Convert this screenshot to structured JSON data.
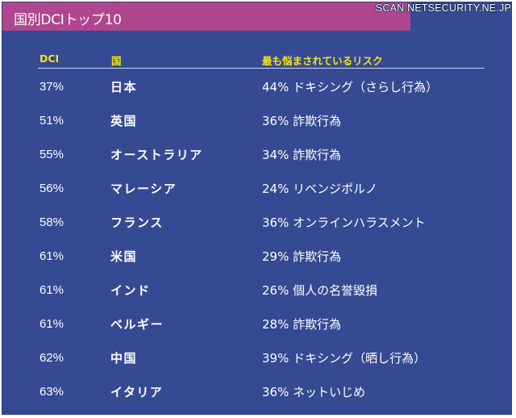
{
  "title": "国別DCIトップ10",
  "watermark": "SCAN.NETSECURITY.NE.JP",
  "colors": {
    "background": "#354a93",
    "title_bar": "#b0468d",
    "header_text": "#f1e31c"
  },
  "chart_data": {
    "type": "table",
    "columns": [
      "DCI",
      "国",
      "最も悩まされているリスク"
    ],
    "rows": [
      {
        "dci": "37%",
        "country": "日本",
        "risk": "44% ドキシング（さらし行為）"
      },
      {
        "dci": "51%",
        "country": "英国",
        "risk": "36% 詐欺行為"
      },
      {
        "dci": "55%",
        "country": "オーストラリア",
        "risk": "34% 詐欺行為"
      },
      {
        "dci": "56%",
        "country": "マレーシア",
        "risk": "24% リベンジポルノ"
      },
      {
        "dci": "58%",
        "country": "フランス",
        "risk": "36% オンラインハラスメント"
      },
      {
        "dci": "61%",
        "country": "米国",
        "risk": "29% 詐欺行為"
      },
      {
        "dci": "61%",
        "country": "インド",
        "risk": "26% 個人の名誉毀損"
      },
      {
        "dci": "61%",
        "country": "ベルギー",
        "risk": "28% 詐欺行為"
      },
      {
        "dci": "62%",
        "country": "中国",
        "risk": "39% ドキシング（晒し行為）"
      },
      {
        "dci": "63%",
        "country": "イタリア",
        "risk": "36% ネットいじめ"
      }
    ]
  }
}
